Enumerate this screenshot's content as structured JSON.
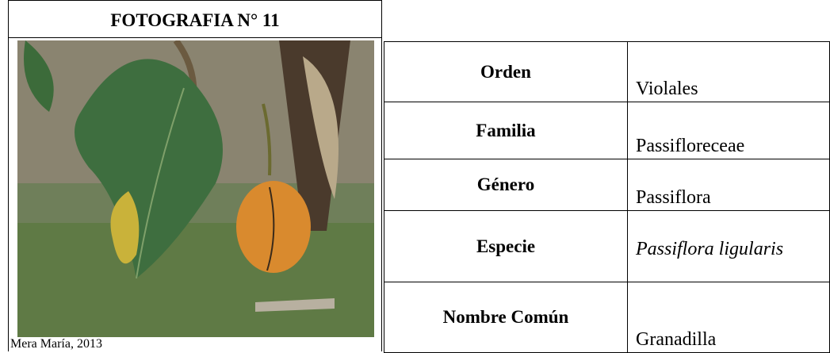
{
  "header": {
    "title": "FOTOGRAFIA N° 11"
  },
  "photo": {
    "caption": "Mera María, 2013"
  },
  "table": {
    "rows": [
      [
        "Orden",
        "Violales"
      ],
      [
        "Familia",
        "Passifloreceae"
      ],
      [
        "Género",
        "Passiflora"
      ],
      [
        "Especie",
        "Passiflora ligularis"
      ],
      [
        "Nombre Común",
        "Granadilla"
      ]
    ]
  }
}
